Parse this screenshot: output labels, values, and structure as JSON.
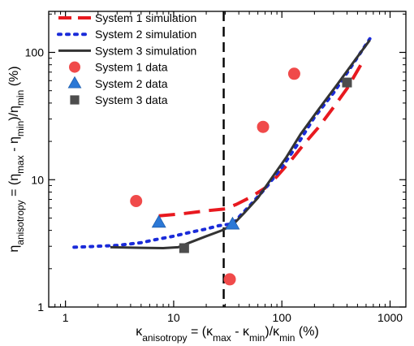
{
  "chart_data": {
    "type": "scatter",
    "title": "",
    "xscale": "log",
    "yscale": "log",
    "xlim": [
      0.7,
      1400
    ],
    "ylim": [
      1,
      210
    ],
    "x_ticks": [
      {
        "value": 1,
        "label": "1"
      },
      {
        "value": 10,
        "label": "10"
      },
      {
        "value": 100,
        "label": "100"
      },
      {
        "value": 1000,
        "label": "1000"
      }
    ],
    "y_ticks": [
      {
        "value": 1,
        "label": "1"
      },
      {
        "value": 10,
        "label": "10"
      },
      {
        "value": 100,
        "label": "100"
      }
    ],
    "xlabel": {
      "parts": [
        {
          "t": "κ",
          "s": "n"
        },
        {
          "t": "anisotropy",
          "s": "sub"
        },
        {
          "t": " = (κ",
          "s": "n"
        },
        {
          "t": "max",
          "s": "sub"
        },
        {
          "t": " - κ",
          "s": "n"
        },
        {
          "t": "min",
          "s": "sub"
        },
        {
          "t": ")/κ",
          "s": "n"
        },
        {
          "t": "min",
          "s": "sub"
        },
        {
          "t": " (%)",
          "s": "n"
        }
      ]
    },
    "ylabel": {
      "parts": [
        {
          "t": "η",
          "s": "n"
        },
        {
          "t": "anisotropy",
          "s": "sub"
        },
        {
          "t": " = (η",
          "s": "n"
        },
        {
          "t": "max",
          "s": "sub"
        },
        {
          "t": " - η",
          "s": "n"
        },
        {
          "t": "min",
          "s": "sub"
        },
        {
          "t": ")/η",
          "s": "n"
        },
        {
          "t": "min",
          "s": "sub"
        },
        {
          "t": " (%)",
          "s": "n"
        }
      ]
    },
    "vline": {
      "x": 29,
      "style": "dashed",
      "color": "#000000"
    },
    "legend": {
      "position": "top-left"
    },
    "series": [
      {
        "name": "System 1 simulation",
        "kind": "line",
        "color": "#e8191f",
        "dash": "dash",
        "x": [
          7.3,
          12,
          20,
          30,
          38,
          50,
          70,
          90,
          120,
          160,
          220,
          300,
          400,
          560
        ],
        "y": [
          5.2,
          5.4,
          5.7,
          5.9,
          6.4,
          7.2,
          8.6,
          10.6,
          14,
          19,
          26,
          37,
          52,
          85
        ]
      },
      {
        "name": "System 2 simulation",
        "kind": "line",
        "color": "#1a2bd9",
        "dash": "dot",
        "x": [
          1.2,
          2,
          3,
          5,
          7,
          10,
          14,
          20,
          26,
          35,
          50,
          70,
          100,
          140,
          200,
          300,
          450,
          650
        ],
        "y": [
          2.95,
          3.0,
          3.05,
          3.2,
          3.4,
          3.6,
          3.85,
          4.1,
          4.35,
          4.5,
          6.2,
          8.5,
          12.5,
          19,
          31,
          48,
          80,
          128
        ]
      },
      {
        "name": "System 3 simulation",
        "kind": "line",
        "color": "#333333",
        "dash": "solid",
        "x": [
          2.6,
          5,
          8,
          11,
          14,
          20,
          28,
          35,
          45,
          60,
          80,
          110,
          150,
          220,
          320,
          460,
          650
        ],
        "y": [
          2.95,
          2.92,
          2.9,
          2.95,
          3.2,
          3.6,
          4.0,
          4.4,
          5.5,
          7.2,
          10.2,
          15,
          23,
          36,
          55,
          84,
          125
        ]
      },
      {
        "name": "System 1 data",
        "kind": "marker",
        "marker": "circle",
        "color": "#f04a4a",
        "x": [
          4.5,
          33,
          67,
          130
        ],
        "y": [
          6.8,
          1.65,
          26,
          68
        ]
      },
      {
        "name": "System 2 data",
        "kind": "marker",
        "marker": "triangle",
        "color": "#2b78d6",
        "x": [
          7.3,
          35
        ],
        "y": [
          4.6,
          4.45
        ]
      },
      {
        "name": "System 3 data",
        "kind": "marker",
        "marker": "square",
        "color": "#4d4d4d",
        "x": [
          12.5,
          400
        ],
        "y": [
          2.9,
          58
        ]
      }
    ]
  }
}
